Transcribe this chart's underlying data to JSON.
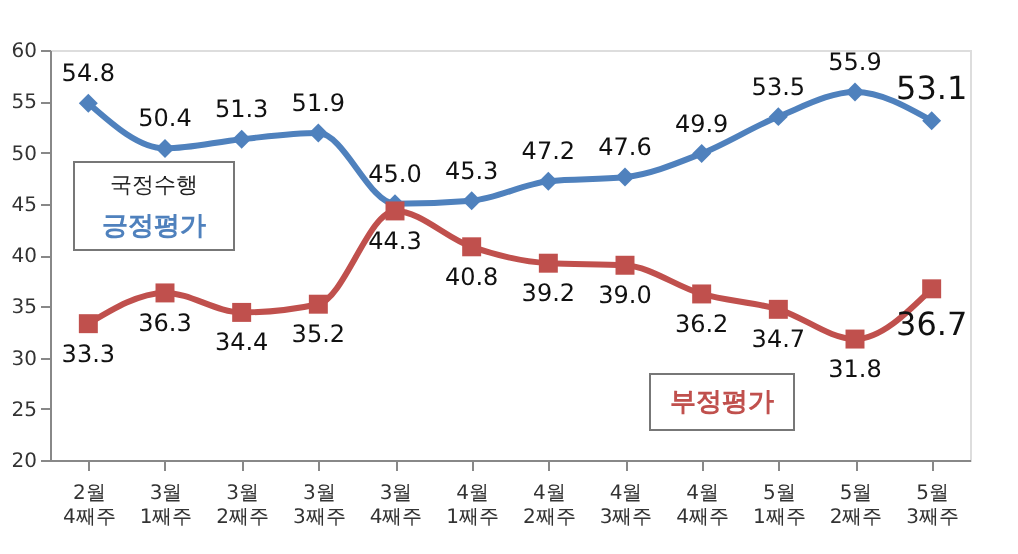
{
  "chart_data": {
    "type": "line",
    "categories": [
      "2월 4째주",
      "3월 1째주",
      "3월 2째주",
      "3월 3째주",
      "3월 4째주",
      "4월 1째주",
      "4월 2째주",
      "4월 3째주",
      "4월 4째주",
      "5월 1째주",
      "5월 2째주",
      "5월 3째주"
    ],
    "series": [
      {
        "name": "긍정평가",
        "color": "#4f81bd",
        "marker": "diamond",
        "values": [
          54.8,
          50.4,
          51.3,
          51.9,
          45.0,
          45.3,
          47.2,
          47.6,
          49.9,
          53.5,
          55.9,
          53.1
        ],
        "value_labels": [
          "54.8",
          "50.4",
          "51.3",
          "51.9",
          "45.0",
          "45.3",
          "47.2",
          "47.6",
          "49.9",
          "53.5",
          "55.9",
          "53.1"
        ]
      },
      {
        "name": "부정평가",
        "color": "#c0504d",
        "marker": "square",
        "values": [
          33.3,
          36.3,
          34.4,
          35.2,
          44.3,
          40.8,
          39.2,
          39.0,
          36.2,
          34.7,
          31.8,
          36.7
        ],
        "value_labels": [
          "33.3",
          "36.3",
          "34.4",
          "35.2",
          "44.3",
          "40.8",
          "39.2",
          "39.0",
          "36.2",
          "34.7",
          "31.8",
          "36.7"
        ]
      }
    ],
    "annotations": [
      "국정수행"
    ],
    "ylim": [
      20,
      60
    ],
    "yticks": [
      20,
      25,
      30,
      35,
      40,
      45,
      50,
      55,
      60
    ],
    "grid": false,
    "legend": false,
    "line_style": "solid"
  }
}
